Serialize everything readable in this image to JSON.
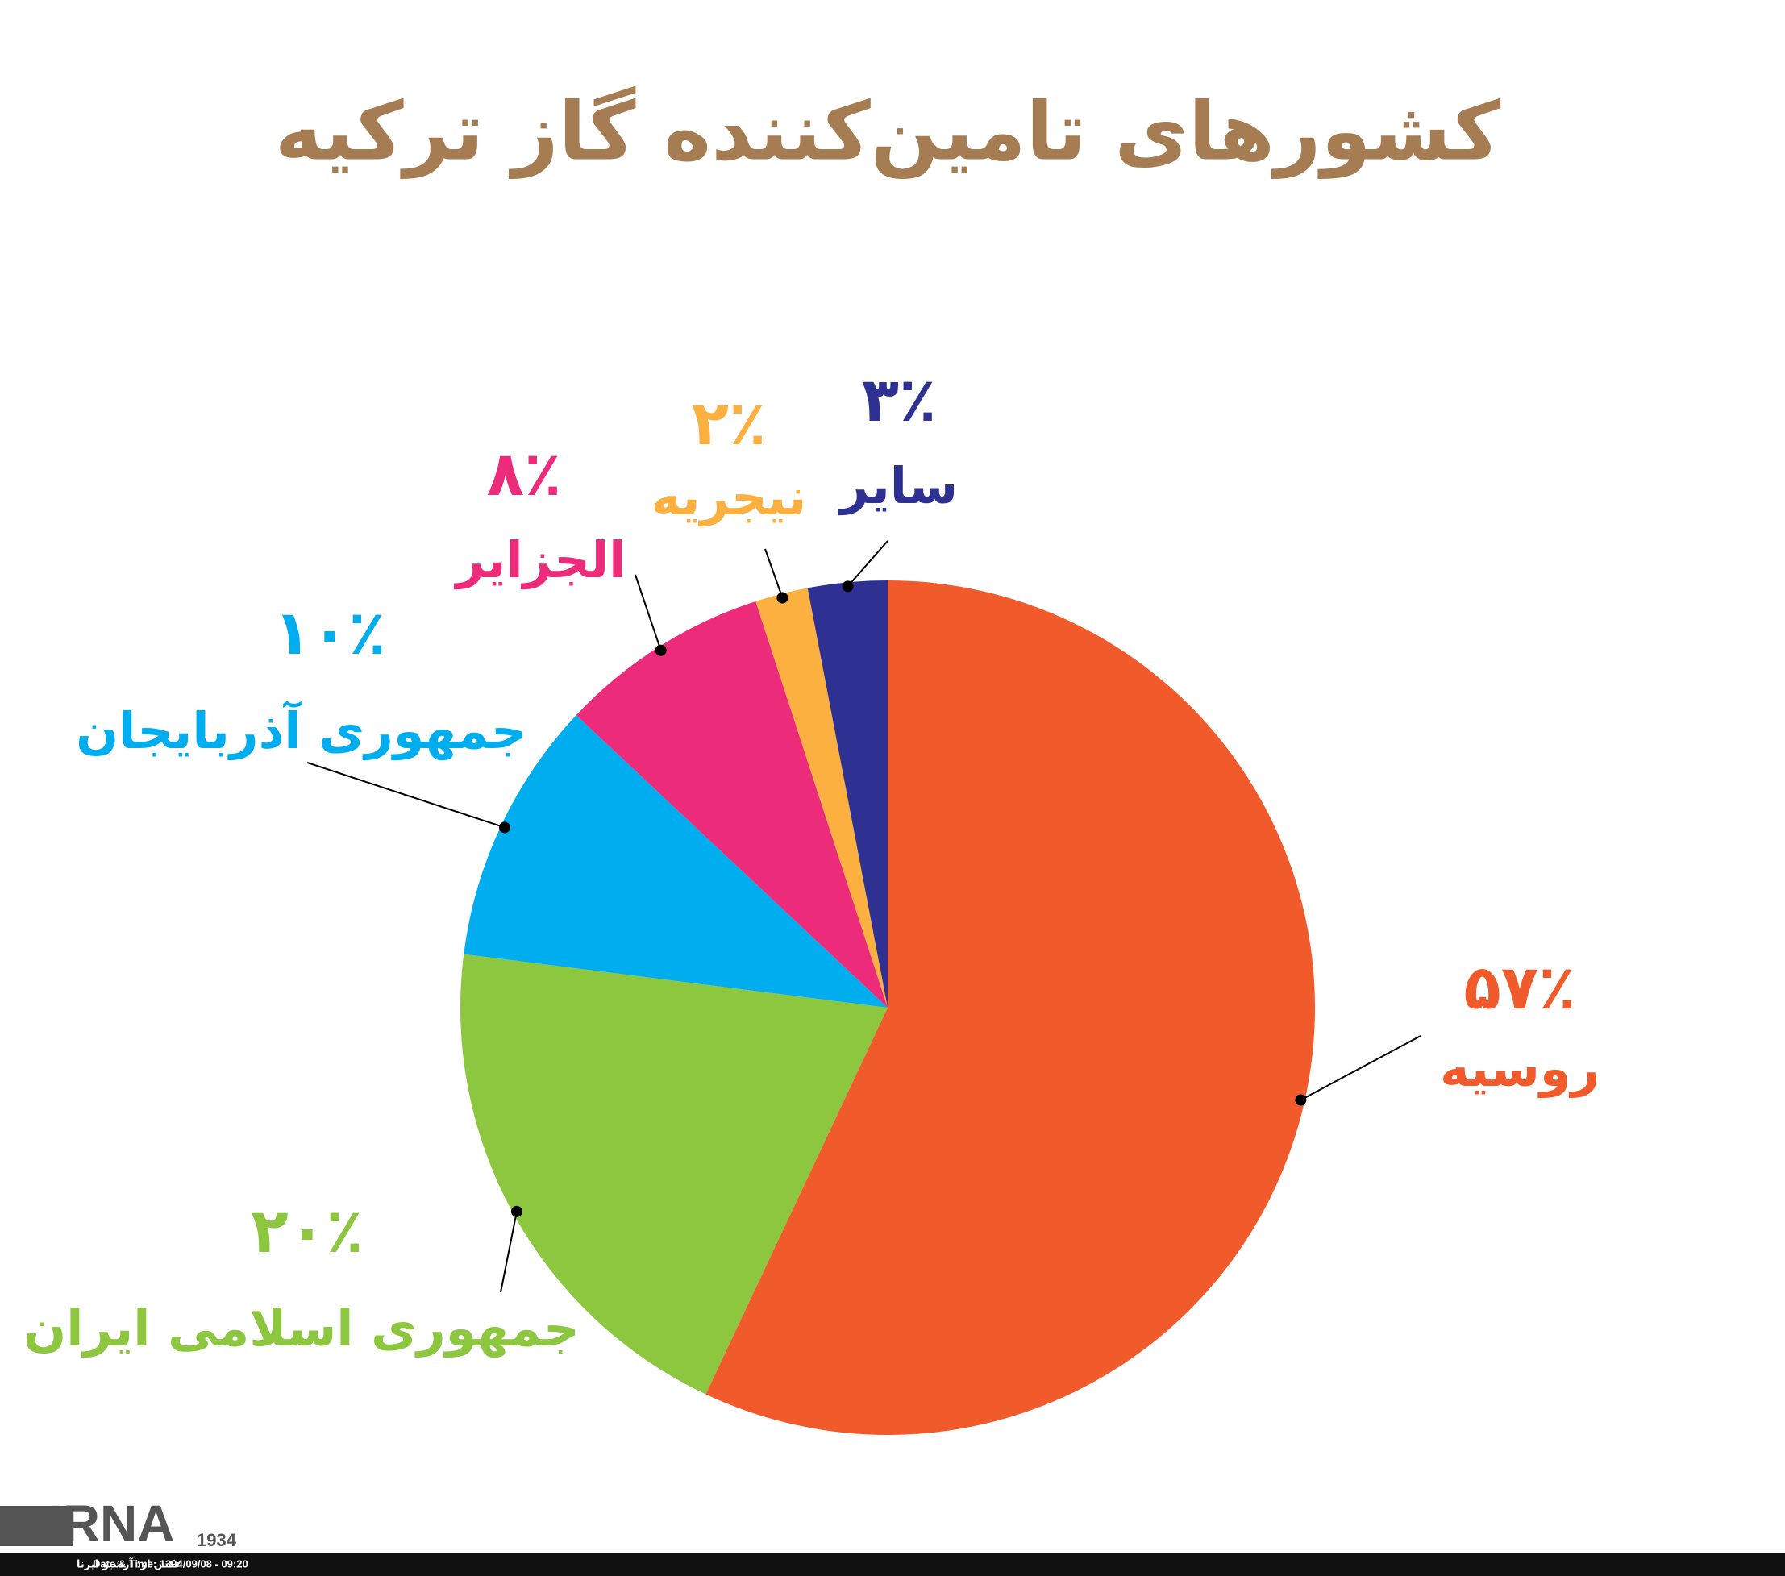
{
  "chart_data": {
    "type": "pie",
    "title": "کشورهای تامین‌کننده گاز ترکیه",
    "categories": [
      "روسیه",
      "جمهوری اسلامی ایران",
      "جمهوری آذربایجان",
      "الجزایر",
      "نیجریه",
      "سایر"
    ],
    "values": [
      57,
      20,
      10,
      8,
      2,
      3
    ],
    "value_labels": [
      "۵۷٪",
      "۲۰٪",
      "۱۰٪",
      "۸٪",
      "۲٪",
      "۳٪"
    ],
    "colors": [
      "#f15a2b",
      "#8dc63f",
      "#00aeef",
      "#ec2c7b",
      "#fbb040",
      "#2e3192"
    ]
  },
  "footer": {
    "logo": "IRNA",
    "logo_year": "1934",
    "datetime": "Date & Time: 1394/09/08 - 09:20",
    "credit": "عکس از: آرشیو ایرنا"
  }
}
